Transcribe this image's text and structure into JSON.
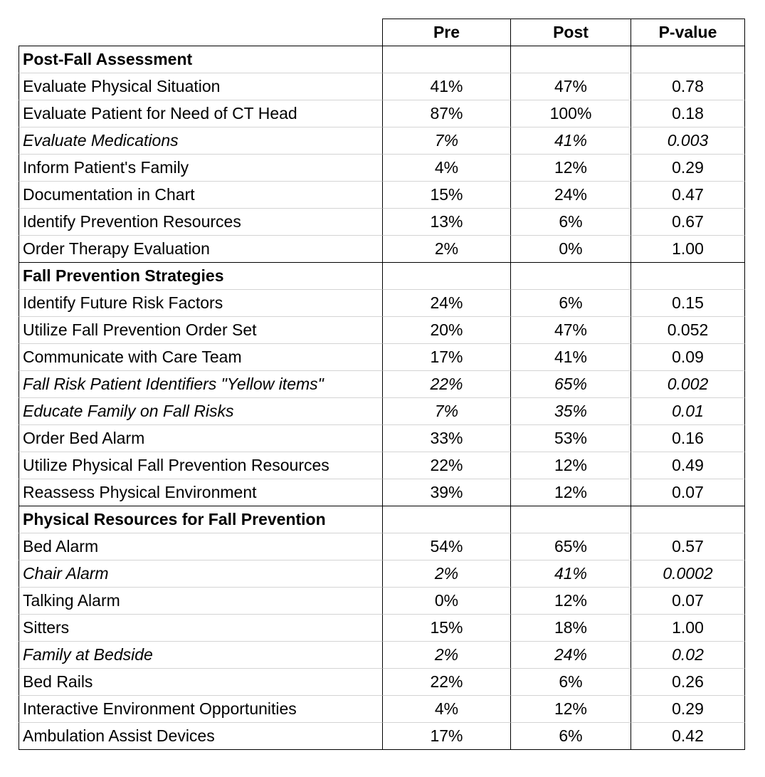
{
  "header": {
    "columns": [
      "Pre",
      "Post",
      "P-value"
    ]
  },
  "sections": [
    {
      "title": "Post-Fall Assessment",
      "rows": [
        {
          "label": "Evaluate Physical Situation",
          "pre": "41%",
          "post": "47%",
          "p": "0.78",
          "italic": false
        },
        {
          "label": "Evaluate Patient for Need of CT Head",
          "pre": "87%",
          "post": "100%",
          "p": "0.18",
          "italic": false
        },
        {
          "label": "Evaluate Medications",
          "pre": "7%",
          "post": "41%",
          "p": "0.003",
          "italic": true
        },
        {
          "label": "Inform Patient's Family",
          "pre": "4%",
          "post": "12%",
          "p": "0.29",
          "italic": false
        },
        {
          "label": "Documentation in Chart",
          "pre": "15%",
          "post": "24%",
          "p": "0.47",
          "italic": false
        },
        {
          "label": "Identify Prevention Resources",
          "pre": "13%",
          "post": "6%",
          "p": "0.67",
          "italic": false
        },
        {
          "label": "Order Therapy Evaluation",
          "pre": "2%",
          "post": "0%",
          "p": "1.00",
          "italic": false
        }
      ]
    },
    {
      "title": "Fall Prevention Strategies",
      "rows": [
        {
          "label": "Identify Future Risk Factors",
          "pre": "24%",
          "post": "6%",
          "p": "0.15",
          "italic": false
        },
        {
          "label": "Utilize Fall Prevention Order Set",
          "pre": "20%",
          "post": "47%",
          "p": "0.052",
          "italic": false
        },
        {
          "label": "Communicate with Care Team",
          "pre": "17%",
          "post": "41%",
          "p": "0.09",
          "italic": false
        },
        {
          "label": "Fall Risk Patient Identifiers \"Yellow items\"",
          "pre": "22%",
          "post": "65%",
          "p": "0.002",
          "italic": true
        },
        {
          "label": "Educate Family on Fall Risks",
          "pre": "7%",
          "post": "35%",
          "p": "0.01",
          "italic": true
        },
        {
          "label": "Order Bed Alarm",
          "pre": "33%",
          "post": "53%",
          "p": "0.16",
          "italic": false
        },
        {
          "label": "Utilize Physical Fall Prevention Resources",
          "pre": "22%",
          "post": "12%",
          "p": "0.49",
          "italic": false
        },
        {
          "label": "Reassess Physical Environment",
          "pre": "39%",
          "post": "12%",
          "p": "0.07",
          "italic": false
        }
      ]
    },
    {
      "title": "Physical Resources for Fall Prevention",
      "rows": [
        {
          "label": "Bed Alarm",
          "pre": "54%",
          "post": "65%",
          "p": "0.57",
          "italic": false
        },
        {
          "label": "Chair Alarm",
          "pre": "2%",
          "post": "41%",
          "p": "0.0002",
          "italic": true
        },
        {
          "label": "Talking Alarm",
          "pre": "0%",
          "post": "12%",
          "p": "0.07",
          "italic": false
        },
        {
          "label": "Sitters",
          "pre": "15%",
          "post": "18%",
          "p": "1.00",
          "italic": false
        },
        {
          "label": "Family at Bedside",
          "pre": "2%",
          "post": "24%",
          "p": "0.02",
          "italic": true
        },
        {
          "label": "Bed Rails",
          "pre": "22%",
          "post": "6%",
          "p": "0.26",
          "italic": false
        },
        {
          "label": "Interactive Environment Opportunities",
          "pre": "4%",
          "post": "12%",
          "p": "0.29",
          "italic": false
        },
        {
          "label": "Ambulation Assist Devices",
          "pre": "17%",
          "post": "6%",
          "p": "0.42",
          "italic": false
        }
      ]
    }
  ]
}
